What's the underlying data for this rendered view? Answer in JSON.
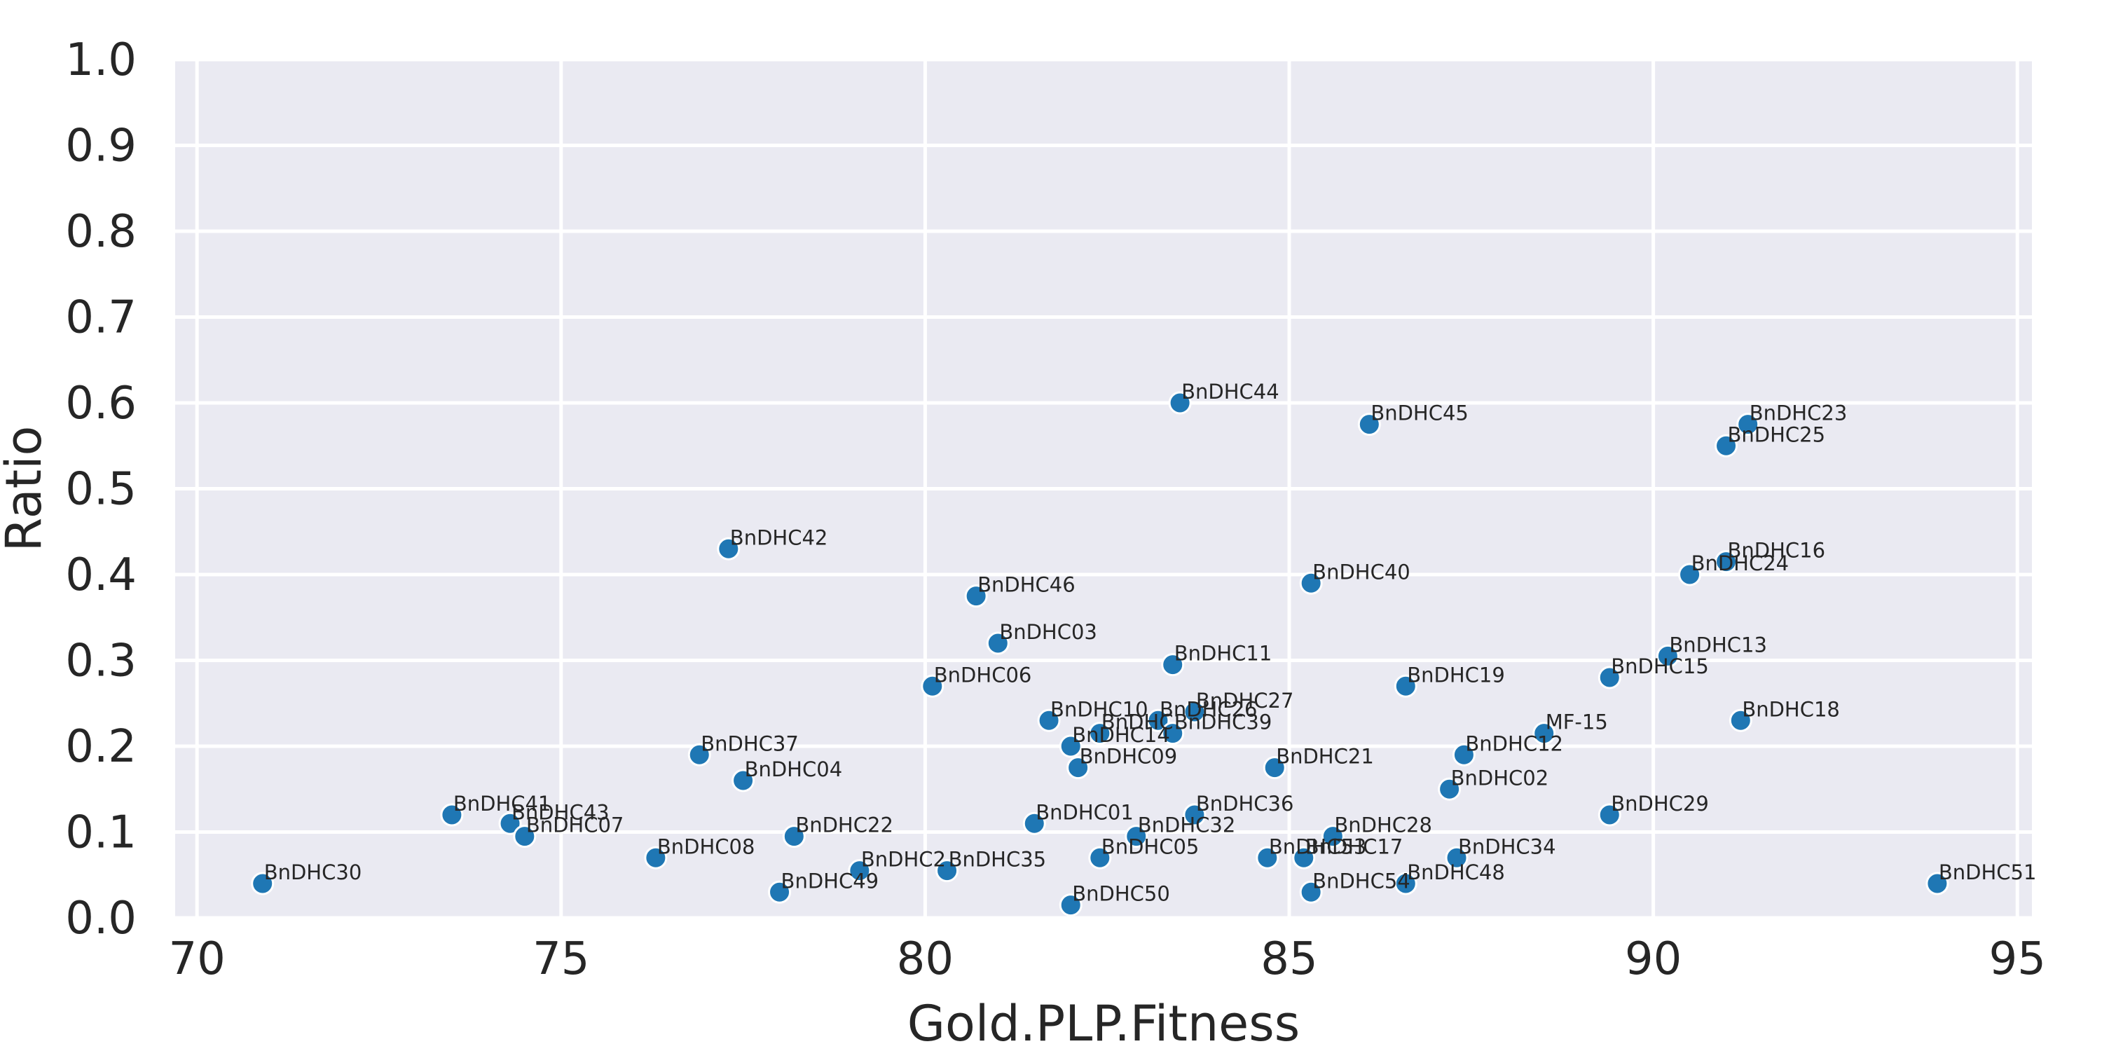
{
  "chart_data": {
    "type": "scatter",
    "title": "",
    "xlabel": "Gold.PLP.Fitness",
    "ylabel": "Ratio",
    "xlim": [
      69.7,
      95.2
    ],
    "ylim": [
      0.0,
      1.0
    ],
    "xticks": [
      70,
      75,
      80,
      85,
      90,
      95
    ],
    "yticks": [
      0.0,
      0.1,
      0.2,
      0.3,
      0.4,
      0.5,
      0.6,
      0.7,
      0.8,
      0.9,
      1.0
    ],
    "ytick_labels": [
      "0.0",
      "0.1",
      "0.2",
      "0.3",
      "0.4",
      "0.5",
      "0.6",
      "0.7",
      "0.8",
      "0.9",
      "1.0"
    ],
    "grid": true,
    "colors": {
      "marker": "#1f77b4",
      "panel": "#eaeaf2",
      "grid": "#ffffff"
    },
    "points": [
      {
        "label": "BnDHC44",
        "x": 83.5,
        "y": 0.6
      },
      {
        "label": "BnDHC45",
        "x": 86.1,
        "y": 0.575
      },
      {
        "label": "BnDHC23",
        "x": 91.3,
        "y": 0.575
      },
      {
        "label": "BnDHC25",
        "x": 91.0,
        "y": 0.55
      },
      {
        "label": "BnDHC42",
        "x": 77.3,
        "y": 0.43
      },
      {
        "label": "BnDHC16",
        "x": 91.0,
        "y": 0.415
      },
      {
        "label": "BnDHC24",
        "x": 90.5,
        "y": 0.4
      },
      {
        "label": "BnDHC40",
        "x": 85.3,
        "y": 0.39
      },
      {
        "label": "BnDHC46",
        "x": 80.7,
        "y": 0.375
      },
      {
        "label": "BnDHC03",
        "x": 81.0,
        "y": 0.32
      },
      {
        "label": "BnDHC13",
        "x": 90.2,
        "y": 0.305
      },
      {
        "label": "BnDHC11",
        "x": 83.4,
        "y": 0.295
      },
      {
        "label": "BnDHC15",
        "x": 89.4,
        "y": 0.28
      },
      {
        "label": "BnDHC06",
        "x": 80.1,
        "y": 0.27
      },
      {
        "label": "BnDHC19",
        "x": 86.6,
        "y": 0.27
      },
      {
        "label": "BnDHC27",
        "x": 83.7,
        "y": 0.24
      },
      {
        "label": "BnDHC10",
        "x": 81.7,
        "y": 0.23
      },
      {
        "label": "BnDHC26",
        "x": 83.2,
        "y": 0.23
      },
      {
        "label": "BnDHC18",
        "x": 91.2,
        "y": 0.23
      },
      {
        "label": "BnDHC",
        "x": 82.4,
        "y": 0.215
      },
      {
        "label": "BnDHC39",
        "x": 83.4,
        "y": 0.215
      },
      {
        "label": "MF-15",
        "x": 88.5,
        "y": 0.215
      },
      {
        "label": "BnDHC14",
        "x": 82.0,
        "y": 0.2
      },
      {
        "label": "BnDHC37",
        "x": 76.9,
        "y": 0.19
      },
      {
        "label": "BnDHC12",
        "x": 87.4,
        "y": 0.19
      },
      {
        "label": "BnDHC09",
        "x": 82.1,
        "y": 0.175
      },
      {
        "label": "BnDHC21",
        "x": 84.8,
        "y": 0.175
      },
      {
        "label": "BnDHC04",
        "x": 77.5,
        "y": 0.16
      },
      {
        "label": "BnDHC02",
        "x": 87.2,
        "y": 0.15
      },
      {
        "label": "BnDHC41",
        "x": 73.5,
        "y": 0.12
      },
      {
        "label": "BnDHC36",
        "x": 83.7,
        "y": 0.12
      },
      {
        "label": "BnDHC29",
        "x": 89.4,
        "y": 0.12
      },
      {
        "label": "BnDHC43",
        "x": 74.3,
        "y": 0.11
      },
      {
        "label": "BnDHC01",
        "x": 81.5,
        "y": 0.11
      },
      {
        "label": "BnDHC07",
        "x": 74.5,
        "y": 0.095
      },
      {
        "label": "BnDHC22",
        "x": 78.2,
        "y": 0.095
      },
      {
        "label": "BnDHC32",
        "x": 82.9,
        "y": 0.095
      },
      {
        "label": "BnDHC28",
        "x": 85.6,
        "y": 0.095
      },
      {
        "label": "BnDHC08",
        "x": 76.3,
        "y": 0.07
      },
      {
        "label": "BnDHC05",
        "x": 82.4,
        "y": 0.07
      },
      {
        "label": "BnDHC53",
        "x": 84.7,
        "y": 0.07
      },
      {
        "label": "BnDHC17",
        "x": 85.2,
        "y": 0.07
      },
      {
        "label": "BnDHC34",
        "x": 87.3,
        "y": 0.07
      },
      {
        "label": "BnDHC2",
        "x": 79.1,
        "y": 0.055
      },
      {
        "label": "BnDHC35",
        "x": 80.3,
        "y": 0.055
      },
      {
        "label": "BnDHC30",
        "x": 70.9,
        "y": 0.04
      },
      {
        "label": "BnDHC48",
        "x": 86.6,
        "y": 0.04
      },
      {
        "label": "BnDHC51",
        "x": 93.9,
        "y": 0.04
      },
      {
        "label": "BnDHC49",
        "x": 78.0,
        "y": 0.03
      },
      {
        "label": "BnDHC54",
        "x": 85.3,
        "y": 0.03
      },
      {
        "label": "BnDHC50",
        "x": 82.0,
        "y": 0.015
      }
    ]
  }
}
